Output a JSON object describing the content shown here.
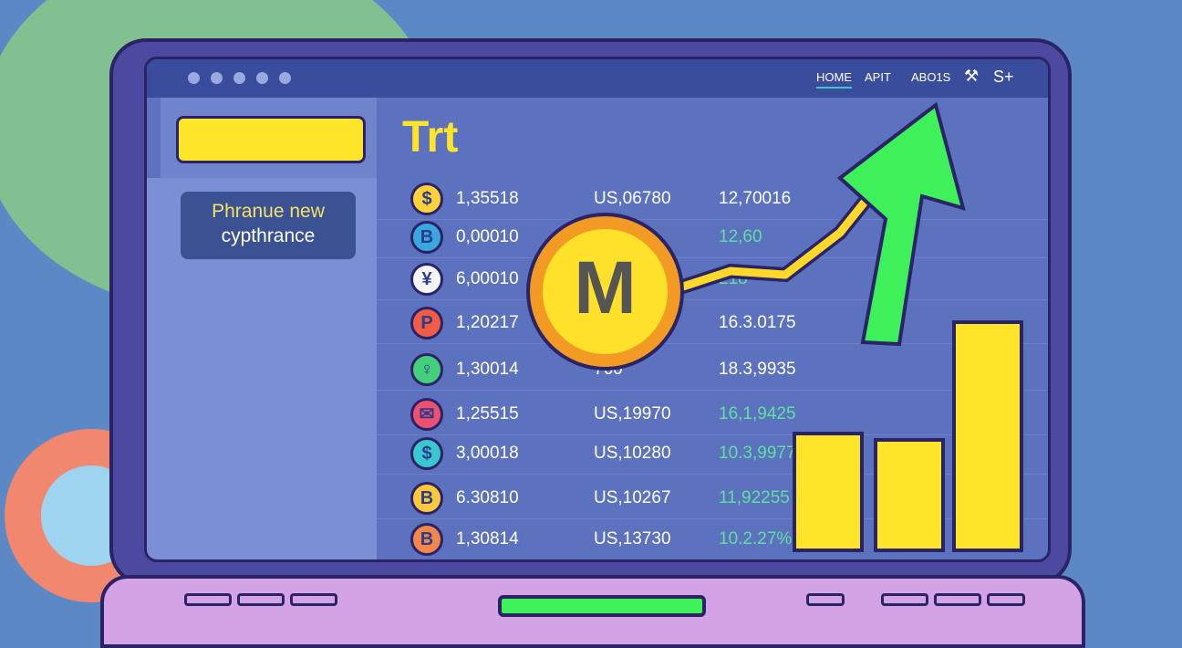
{
  "nav": {
    "items": [
      "HOME",
      "APIT",
      "ABO1S"
    ],
    "icons": [
      "wrench-icon"
    ],
    "extra": "S+"
  },
  "sidebar": {
    "card_line1": "Phranue new",
    "card_line2": "cypthrance"
  },
  "main": {
    "title": "Trt",
    "featured_coin": "M",
    "rows": [
      {
        "icon": "$",
        "c1": "1,35518",
        "c2": "US,06780",
        "c3": "12,70016",
        "icon_color": "#ffd23a",
        "c3_green": false
      },
      {
        "icon": "B",
        "c1": "0,00010",
        "c2": "",
        "c3": "12,60",
        "icon_color": "#3aa8e0",
        "c3_green": true
      },
      {
        "icon": "¥",
        "c1": "6,00010",
        "c2": "",
        "c3": "218",
        "icon_color": "#f5f5f5",
        "c3_green": true
      },
      {
        "icon": "P",
        "c1": "1,20217",
        "c2": "",
        "c3": "16.3.0175",
        "icon_color": "#f25c44",
        "c3_green": false
      },
      {
        "icon": "♀",
        "c1": "1,30014",
        "c2": "760",
        "c3": "18.3,9935",
        "icon_color": "#44d07a",
        "c3_green": false
      },
      {
        "icon": "✉",
        "c1": "1,25515",
        "c2": "US,19970",
        "c3": "16,1,9425",
        "icon_color": "#f05070",
        "c3_green": true
      },
      {
        "icon": "$",
        "c1": "3,00018",
        "c2": "US,10280",
        "c3": "10.3,9977",
        "icon_color": "#3ac8d0",
        "c3_green": true
      },
      {
        "icon": "B",
        "c1": "6.30810",
        "c2": "US,10267",
        "c3": "11,92255",
        "icon_color": "#ffc83a",
        "c3_green": true
      },
      {
        "icon": "B",
        "c1": "1,30814",
        "c2": "US,13730",
        "c3": "10.2.27%",
        "icon_color": "#f5864a",
        "c3_green": true
      }
    ]
  },
  "chart": {
    "bar_levels": [
      0.4,
      0.38,
      0.77
    ],
    "colors": {
      "bar": "#ffe52a",
      "arrow": "#3ef05a",
      "line": "#ffd82a"
    }
  }
}
